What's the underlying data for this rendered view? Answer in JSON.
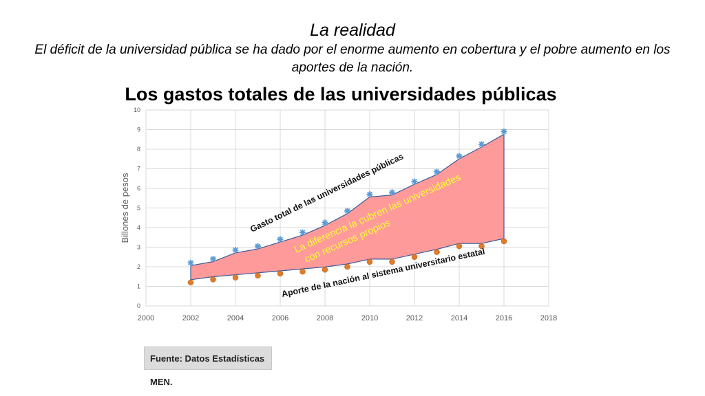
{
  "heading": {
    "title": "La realidad",
    "subtitle": "El déficit de la universidad pública se ha dado por el enorme aumento en cobertura y el pobre aumento en los aportes de la nación."
  },
  "source": "Fuente: Datos Estadísticas MEN.",
  "colors": {
    "fill": "#ff9a9a",
    "outline": "#3a5a9a",
    "total_marker": "#5b9bd5",
    "aporte_marker": "#e07b2a",
    "diff_text": "#ffff33",
    "grid": "#d9d9d9"
  },
  "chart_data": {
    "type": "scatter",
    "title": "Los gastos totales de las universidades públicas",
    "ylabel": "Billones de pesos",
    "xlabel": "",
    "xlim": [
      2000,
      2018
    ],
    "ylim": [
      0,
      10
    ],
    "xticks": [
      2000,
      2002,
      2004,
      2006,
      2008,
      2010,
      2012,
      2014,
      2016,
      2018
    ],
    "yticks": [
      0,
      1,
      2,
      3,
      4,
      5,
      6,
      7,
      8,
      9,
      10
    ],
    "grid": true,
    "series": [
      {
        "name": "Gasto total de las universidades públicas",
        "marker": "star",
        "x": [
          2002,
          2003,
          2004,
          2005,
          2006,
          2007,
          2008,
          2009,
          2010,
          2011,
          2012,
          2013,
          2014,
          2015,
          2016
        ],
        "y": [
          2.2,
          2.4,
          2.85,
          3.05,
          3.4,
          3.75,
          4.25,
          4.85,
          5.7,
          5.8,
          6.35,
          6.85,
          7.65,
          8.25,
          8.9
        ]
      },
      {
        "name": "Aporte de la nación al sistema universitario estatal",
        "marker": "circle",
        "x": [
          2002,
          2003,
          2004,
          2005,
          2006,
          2007,
          2008,
          2009,
          2010,
          2011,
          2012,
          2013,
          2014,
          2015,
          2016
        ],
        "y": [
          1.2,
          1.35,
          1.45,
          1.55,
          1.65,
          1.75,
          1.85,
          2.0,
          2.25,
          2.25,
          2.5,
          2.75,
          3.05,
          3.05,
          3.3
        ]
      }
    ],
    "annotations": {
      "diferencia": "La diferencia la cubren las universidades con recursos propios"
    }
  }
}
